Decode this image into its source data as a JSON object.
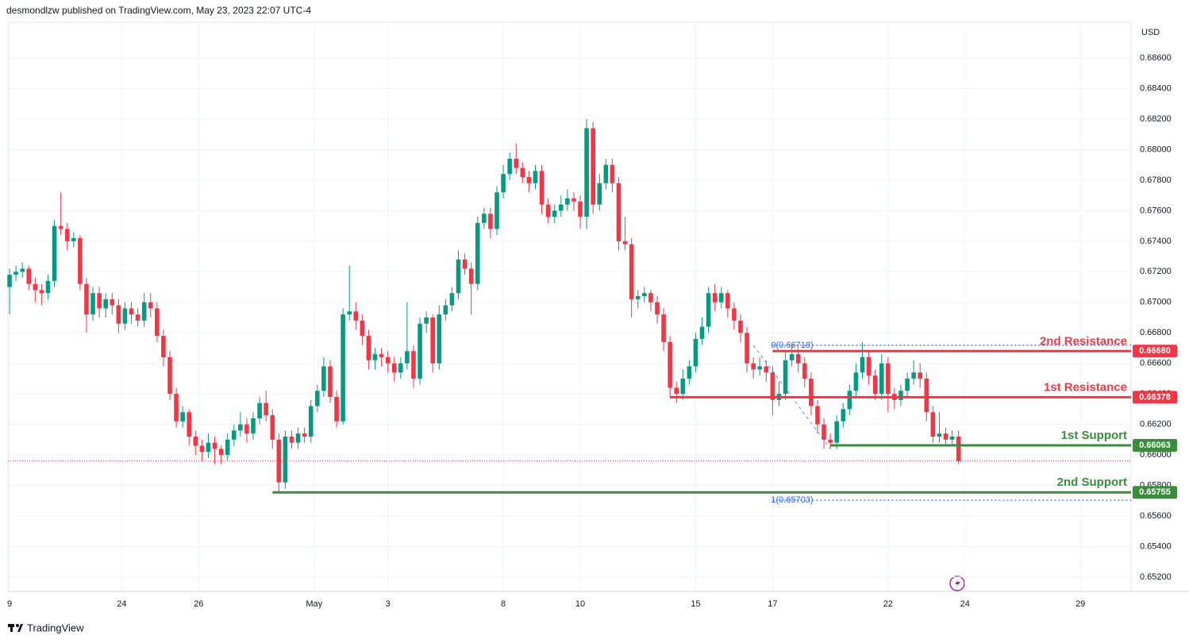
{
  "header": "desmondlzw published on TradingView.com, May 23, 2023 22:07 UTC-4",
  "footer": "TradingView",
  "chart_data": {
    "type": "candlestick",
    "currency": "USD",
    "up_color": "#089981",
    "down_color": "#f23645",
    "grid": true,
    "xlim": [
      -0.25,
      174.9
    ],
    "xticks": [
      {
        "value": 0,
        "label": "9"
      },
      {
        "value": 17.5,
        "label": "24"
      },
      {
        "value": 29.5,
        "label": "26"
      },
      {
        "value": 47.5,
        "label": "May"
      },
      {
        "value": 59,
        "label": "3"
      },
      {
        "value": 77,
        "label": "8"
      },
      {
        "value": 89,
        "label": "10"
      },
      {
        "value": 107,
        "label": "15"
      },
      {
        "value": 119,
        "label": "17"
      },
      {
        "value": 137,
        "label": "22"
      },
      {
        "value": 149,
        "label": "24"
      },
      {
        "value": 167,
        "label": "29"
      }
    ],
    "ylim": [
      0.65106,
      0.68824
    ],
    "yticks": [
      {
        "value": 0.686,
        "label": "0.68600"
      },
      {
        "value": 0.684,
        "label": "0.68400"
      },
      {
        "value": 0.682,
        "label": "0.68200"
      },
      {
        "value": 0.68,
        "label": "0.68000"
      },
      {
        "value": 0.678,
        "label": "0.67800"
      },
      {
        "value": 0.676,
        "label": "0.67600"
      },
      {
        "value": 0.674,
        "label": "0.67400"
      },
      {
        "value": 0.672,
        "label": "0.67200"
      },
      {
        "value": 0.67,
        "label": "0.67000"
      },
      {
        "value": 0.668,
        "label": "0.66800"
      },
      {
        "value": 0.666,
        "label": "0.66600"
      },
      {
        "value": 0.664,
        "label": "0.66400"
      },
      {
        "value": 0.662,
        "label": "0.66200"
      },
      {
        "value": 0.66,
        "label": "0.66000"
      },
      {
        "value": 0.658,
        "label": "0.65800"
      },
      {
        "value": 0.656,
        "label": "0.65600"
      },
      {
        "value": 0.654,
        "label": "0.65400"
      },
      {
        "value": 0.652,
        "label": "0.65200"
      }
    ],
    "ohlc": [
      [
        0.671,
        0.6722,
        0.6692,
        0.6718
      ],
      [
        0.6718,
        0.6724,
        0.6714,
        0.672
      ],
      [
        0.672,
        0.6726,
        0.6716,
        0.6722
      ],
      [
        0.6722,
        0.6724,
        0.6708,
        0.6712
      ],
      [
        0.6712,
        0.6716,
        0.67,
        0.6708
      ],
      [
        0.6708,
        0.6712,
        0.6698,
        0.6706
      ],
      [
        0.6706,
        0.6718,
        0.6702,
        0.6714
      ],
      [
        0.6714,
        0.6754,
        0.671,
        0.675
      ],
      [
        0.675,
        0.6772,
        0.6744,
        0.6748
      ],
      [
        0.6748,
        0.6752,
        0.6734,
        0.674
      ],
      [
        0.674,
        0.6746,
        0.6736,
        0.6742
      ],
      [
        0.6742,
        0.6744,
        0.6708,
        0.6712
      ],
      [
        0.6712,
        0.6716,
        0.668,
        0.6692
      ],
      [
        0.6692,
        0.671,
        0.6688,
        0.6706
      ],
      [
        0.6706,
        0.671,
        0.669,
        0.6696
      ],
      [
        0.6696,
        0.6706,
        0.669,
        0.6702
      ],
      [
        0.6702,
        0.6706,
        0.6692,
        0.6698
      ],
      [
        0.6698,
        0.6702,
        0.668,
        0.6686
      ],
      [
        0.6686,
        0.67,
        0.6682,
        0.6696
      ],
      [
        0.6696,
        0.67,
        0.6686,
        0.6692
      ],
      [
        0.6692,
        0.6696,
        0.6684,
        0.6688
      ],
      [
        0.6688,
        0.6706,
        0.6684,
        0.67
      ],
      [
        0.67,
        0.6706,
        0.669,
        0.6696
      ],
      [
        0.6696,
        0.67,
        0.6674,
        0.6678
      ],
      [
        0.6678,
        0.6682,
        0.6658,
        0.6664
      ],
      [
        0.6664,
        0.6668,
        0.6636,
        0.664
      ],
      [
        0.664,
        0.6644,
        0.6618,
        0.6622
      ],
      [
        0.6622,
        0.6632,
        0.6618,
        0.6628
      ],
      [
        0.6628,
        0.663,
        0.6606,
        0.6612
      ],
      [
        0.6612,
        0.6616,
        0.66,
        0.6606
      ],
      [
        0.6606,
        0.661,
        0.6596,
        0.6602
      ],
      [
        0.6602,
        0.6614,
        0.6598,
        0.6608
      ],
      [
        0.6608,
        0.6612,
        0.6594,
        0.6604
      ],
      [
        0.6604,
        0.6606,
        0.6594,
        0.66
      ],
      [
        0.66,
        0.6614,
        0.6596,
        0.661
      ],
      [
        0.661,
        0.662,
        0.6606,
        0.6616
      ],
      [
        0.6616,
        0.6628,
        0.6612,
        0.662
      ],
      [
        0.662,
        0.6624,
        0.6608,
        0.6614
      ],
      [
        0.6614,
        0.6628,
        0.661,
        0.6624
      ],
      [
        0.6624,
        0.6638,
        0.662,
        0.6634
      ],
      [
        0.6634,
        0.6642,
        0.6622,
        0.6626
      ],
      [
        0.6626,
        0.663,
        0.6604,
        0.661
      ],
      [
        0.661,
        0.6614,
        0.6575,
        0.6582
      ],
      [
        0.6582,
        0.6616,
        0.6578,
        0.6612
      ],
      [
        0.6612,
        0.6616,
        0.6604,
        0.6608
      ],
      [
        0.6608,
        0.6618,
        0.6604,
        0.6614
      ],
      [
        0.6614,
        0.6618,
        0.6608,
        0.6612
      ],
      [
        0.6612,
        0.6636,
        0.6608,
        0.6632
      ],
      [
        0.6632,
        0.6646,
        0.6628,
        0.6642
      ],
      [
        0.6642,
        0.6664,
        0.6638,
        0.6658
      ],
      [
        0.6658,
        0.6662,
        0.6634,
        0.6638
      ],
      [
        0.6638,
        0.6642,
        0.6618,
        0.6622
      ],
      [
        0.6622,
        0.6696,
        0.662,
        0.6692
      ],
      [
        0.6692,
        0.6724,
        0.6688,
        0.6694
      ],
      [
        0.6694,
        0.67,
        0.6682,
        0.6688
      ],
      [
        0.6688,
        0.6692,
        0.6672,
        0.6678
      ],
      [
        0.6678,
        0.6682,
        0.6656,
        0.6662
      ],
      [
        0.6662,
        0.667,
        0.6656,
        0.6666
      ],
      [
        0.6666,
        0.667,
        0.6658,
        0.6664
      ],
      [
        0.6664,
        0.6668,
        0.6654,
        0.666
      ],
      [
        0.666,
        0.6664,
        0.6648,
        0.6654
      ],
      [
        0.6654,
        0.6664,
        0.665,
        0.666
      ],
      [
        0.666,
        0.67,
        0.6656,
        0.6668
      ],
      [
        0.6668,
        0.6672,
        0.6644,
        0.665
      ],
      [
        0.665,
        0.669,
        0.6646,
        0.6686
      ],
      [
        0.6686,
        0.6694,
        0.668,
        0.669
      ],
      [
        0.669,
        0.6692,
        0.6654,
        0.666
      ],
      [
        0.666,
        0.6698,
        0.6656,
        0.6692
      ],
      [
        0.6692,
        0.6702,
        0.6688,
        0.6698
      ],
      [
        0.6698,
        0.671,
        0.6694,
        0.6706
      ],
      [
        0.6706,
        0.6734,
        0.6702,
        0.6728
      ],
      [
        0.6728,
        0.6732,
        0.6718,
        0.6722
      ],
      [
        0.6722,
        0.6726,
        0.6692,
        0.6712
      ],
      [
        0.6712,
        0.6756,
        0.6708,
        0.6752
      ],
      [
        0.6752,
        0.6762,
        0.6748,
        0.6758
      ],
      [
        0.6758,
        0.6762,
        0.6742,
        0.6748
      ],
      [
        0.6748,
        0.6776,
        0.6744,
        0.6772
      ],
      [
        0.6772,
        0.679,
        0.6768,
        0.6784
      ],
      [
        0.6784,
        0.6798,
        0.678,
        0.6794
      ],
      [
        0.6794,
        0.6804,
        0.6784,
        0.6788
      ],
      [
        0.6788,
        0.6792,
        0.6778,
        0.6782
      ],
      [
        0.6782,
        0.6786,
        0.6772,
        0.6778
      ],
      [
        0.6778,
        0.679,
        0.6774,
        0.6786
      ],
      [
        0.6786,
        0.679,
        0.6758,
        0.6764
      ],
      [
        0.6764,
        0.6768,
        0.6752,
        0.6756
      ],
      [
        0.6756,
        0.6764,
        0.6752,
        0.676
      ],
      [
        0.676,
        0.677,
        0.6756,
        0.6764
      ],
      [
        0.6764,
        0.6774,
        0.676,
        0.6768
      ],
      [
        0.6768,
        0.6772,
        0.676,
        0.6766
      ],
      [
        0.6766,
        0.677,
        0.6748,
        0.6756
      ],
      [
        0.6756,
        0.682,
        0.6748,
        0.6814
      ],
      [
        0.6814,
        0.6818,
        0.6758,
        0.6764
      ],
      [
        0.6764,
        0.6784,
        0.676,
        0.6778
      ],
      [
        0.6778,
        0.6794,
        0.6774,
        0.679
      ],
      [
        0.679,
        0.6794,
        0.6772,
        0.6778
      ],
      [
        0.6778,
        0.6782,
        0.6734,
        0.674
      ],
      [
        0.674,
        0.6756,
        0.6734,
        0.6738
      ],
      [
        0.6738,
        0.6742,
        0.669,
        0.6702
      ],
      [
        0.6702,
        0.6708,
        0.6696,
        0.6704
      ],
      [
        0.6704,
        0.671,
        0.67,
        0.6706
      ],
      [
        0.6706,
        0.6708,
        0.6694,
        0.67
      ],
      [
        0.67,
        0.6704,
        0.6686,
        0.6692
      ],
      [
        0.6692,
        0.6696,
        0.6668,
        0.6674
      ],
      [
        0.6674,
        0.6678,
        0.6638,
        0.6644
      ],
      [
        0.6644,
        0.6648,
        0.6634,
        0.664
      ],
      [
        0.664,
        0.6656,
        0.6636,
        0.665
      ],
      [
        0.665,
        0.6662,
        0.6646,
        0.6658
      ],
      [
        0.6658,
        0.668,
        0.6654,
        0.6676
      ],
      [
        0.6676,
        0.669,
        0.6672,
        0.6684
      ],
      [
        0.6684,
        0.671,
        0.668,
        0.6706
      ],
      [
        0.6706,
        0.6712,
        0.6694,
        0.67
      ],
      [
        0.67,
        0.671,
        0.6696,
        0.6706
      ],
      [
        0.6706,
        0.6708,
        0.669,
        0.6696
      ],
      [
        0.6696,
        0.67,
        0.6682,
        0.6688
      ],
      [
        0.6688,
        0.6692,
        0.6674,
        0.668
      ],
      [
        0.668,
        0.6684,
        0.6654,
        0.666
      ],
      [
        0.666,
        0.6664,
        0.665,
        0.6656
      ],
      [
        0.6656,
        0.6664,
        0.6652,
        0.6658
      ],
      [
        0.6658,
        0.6662,
        0.6648,
        0.6654
      ],
      [
        0.6654,
        0.6658,
        0.6626,
        0.6636
      ],
      [
        0.6636,
        0.6648,
        0.6632,
        0.664
      ],
      [
        0.664,
        0.6668,
        0.6636,
        0.6662
      ],
      [
        0.6662,
        0.6672,
        0.6658,
        0.6666
      ],
      [
        0.6666,
        0.667,
        0.6654,
        0.666
      ],
      [
        0.666,
        0.6664,
        0.6644,
        0.665
      ],
      [
        0.665,
        0.6654,
        0.6626,
        0.6632
      ],
      [
        0.6632,
        0.6636,
        0.6614,
        0.662
      ],
      [
        0.662,
        0.6624,
        0.6604,
        0.661
      ],
      [
        0.661,
        0.6614,
        0.6604,
        0.6608
      ],
      [
        0.6608,
        0.6626,
        0.6604,
        0.6622
      ],
      [
        0.6622,
        0.6634,
        0.6618,
        0.663
      ],
      [
        0.663,
        0.6646,
        0.6626,
        0.6642
      ],
      [
        0.6642,
        0.666,
        0.6638,
        0.6654
      ],
      [
        0.6654,
        0.6674,
        0.665,
        0.6664
      ],
      [
        0.6664,
        0.6668,
        0.6646,
        0.6652
      ],
      [
        0.6652,
        0.6656,
        0.6636,
        0.664
      ],
      [
        0.664,
        0.6666,
        0.6636,
        0.666
      ],
      [
        0.666,
        0.6664,
        0.6628,
        0.664
      ],
      [
        0.664,
        0.6644,
        0.663,
        0.6636
      ],
      [
        0.6636,
        0.6646,
        0.6632,
        0.6642
      ],
      [
        0.6642,
        0.6654,
        0.6638,
        0.665
      ],
      [
        0.665,
        0.6662,
        0.6646,
        0.6654
      ],
      [
        0.6654,
        0.666,
        0.6644,
        0.665
      ],
      [
        0.665,
        0.6654,
        0.6622,
        0.6628
      ],
      [
        0.6628,
        0.6632,
        0.6608,
        0.6612
      ],
      [
        0.6612,
        0.6628,
        0.6608,
        0.6614
      ],
      [
        0.6614,
        0.6618,
        0.6606,
        0.661
      ],
      [
        0.661,
        0.6616,
        0.6606,
        0.6612
      ],
      [
        0.6612,
        0.6616,
        0.6594,
        0.6596
      ]
    ],
    "levels": [
      {
        "name": "2nd Resistance",
        "value": 0.6668,
        "label": "0.66680",
        "from": 119,
        "color": "#f23645"
      },
      {
        "name": "1st Resistance",
        "value": 0.66378,
        "label": "0.66378",
        "from": 103,
        "color": "#f23645"
      },
      {
        "name": "1st Support",
        "value": 0.66063,
        "label": "0.66063",
        "from": 128,
        "color": "#388e3c"
      },
      {
        "name": "2nd Support",
        "value": 0.65755,
        "label": "0.65755",
        "from": 41,
        "color": "#388e3c"
      }
    ],
    "fib": {
      "color": "#2962ff",
      "from": 119,
      "levels": [
        {
          "value": 0.66718,
          "label": "0(0.66718)"
        },
        {
          "value": 0.65703,
          "label": "1(0.65703)"
        }
      ]
    }
  }
}
